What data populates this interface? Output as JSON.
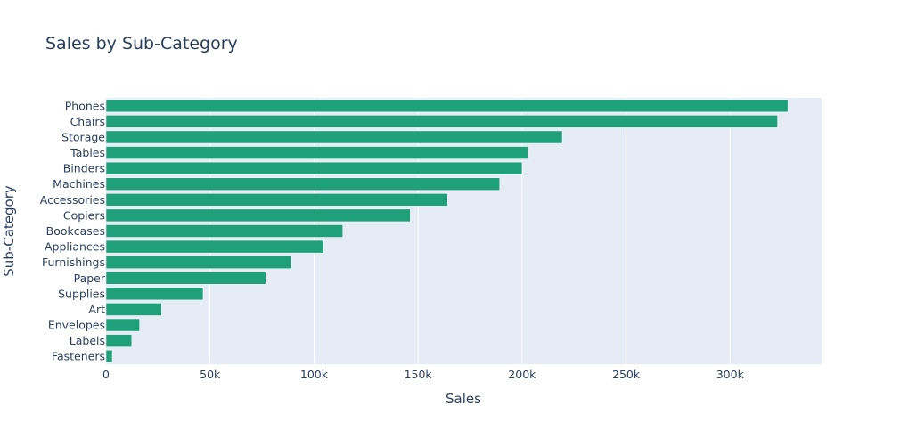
{
  "chart_data": {
    "type": "bar",
    "orientation": "horizontal",
    "title": "Sales by Sub-Category",
    "xlabel": "Sales",
    "ylabel": "Sub-Category",
    "xlim": [
      0,
      344000
    ],
    "x_ticks": [
      0,
      50000,
      100000,
      150000,
      200000,
      250000,
      300000
    ],
    "x_tick_labels": [
      "0",
      "50k",
      "100k",
      "150k",
      "200k",
      "250k",
      "300k"
    ],
    "categories": [
      "Phones",
      "Chairs",
      "Storage",
      "Tables",
      "Binders",
      "Machines",
      "Accessories",
      "Copiers",
      "Bookcases",
      "Appliances",
      "Furnishings",
      "Paper",
      "Supplies",
      "Art",
      "Envelopes",
      "Labels",
      "Fasteners"
    ],
    "values": [
      327782,
      322822,
      219343,
      202810,
      200028,
      189238,
      164186,
      146248,
      113813,
      104618,
      89212,
      76828,
      46673,
      26705,
      16128,
      12347,
      3001
    ],
    "bar_color": "#1fa07a",
    "plot_background": "#e5ecf6",
    "grid": true,
    "legend": "none"
  }
}
